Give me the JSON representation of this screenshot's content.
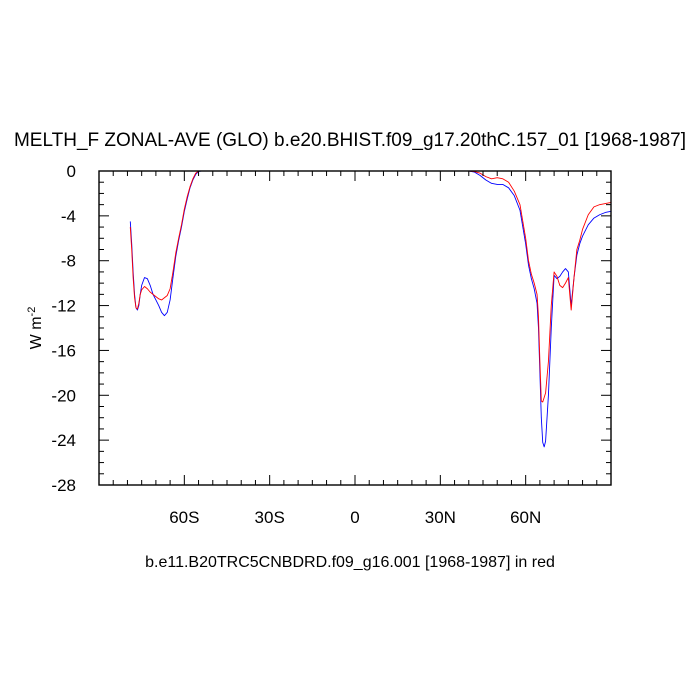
{
  "chart_data": {
    "type": "line",
    "title": "MELTH_F ZONAL-AVE (GLO) b.e20.BHIST.f09_g17.20thC.157_01 [1968-1987]",
    "ylabel_base": "W m",
    "ylabel_exp": "-2",
    "caption": "b.e11.B20TRC5CNBDRD.f09_g16.001 [1968-1987] in red",
    "xlim": [
      -90,
      90
    ],
    "ylim": [
      -28,
      0
    ],
    "xticks": [
      {
        "value": -60,
        "label": "60S"
      },
      {
        "value": -30,
        "label": "30S"
      },
      {
        "value": 0,
        "label": "0"
      },
      {
        "value": 30,
        "label": "30N"
      },
      {
        "value": 60,
        "label": "60N"
      }
    ],
    "yticks": [
      {
        "value": 0,
        "label": "0"
      },
      {
        "value": -4,
        "label": "-4"
      },
      {
        "value": -8,
        "label": "-8"
      },
      {
        "value": -12,
        "label": "-12"
      },
      {
        "value": -16,
        "label": "-16"
      },
      {
        "value": -20,
        "label": "-20"
      },
      {
        "value": -24,
        "label": "-24"
      },
      {
        "value": -28,
        "label": "-28"
      }
    ],
    "series": [
      {
        "color": "#0000ff",
        "x": [
          -79,
          -78.5,
          -78,
          -77.5,
          -77,
          -76.5,
          -76,
          -75.5,
          -75,
          -74,
          -73,
          -72,
          -71,
          -70,
          -69,
          -68,
          -67,
          -66,
          -65,
          -64,
          -63,
          -62,
          -61,
          -60,
          -59,
          -58,
          -57,
          -56,
          -55,
          -54,
          -53,
          -52,
          -51,
          -50,
          40,
          42,
          44,
          46,
          48,
          50,
          52,
          54,
          56,
          58,
          60,
          61,
          62,
          63,
          64,
          64.5,
          65,
          65.5,
          66,
          66.5,
          67,
          68,
          69,
          70,
          71,
          72,
          73,
          74,
          75,
          75.5,
          76,
          77,
          78,
          79,
          80,
          82,
          84,
          86,
          88,
          90
        ],
        "y": [
          -4.5,
          -6.5,
          -9,
          -11,
          -12.2,
          -12.4,
          -12,
          -11,
          -10.2,
          -9.5,
          -9.6,
          -10.2,
          -11,
          -11.5,
          -12,
          -12.6,
          -12.9,
          -12.6,
          -11.5,
          -9.5,
          -7.6,
          -6.2,
          -5,
          -3.6,
          -2.5,
          -1.5,
          -0.8,
          -0.3,
          -0.05,
          0,
          0,
          0,
          0,
          0,
          0,
          -0.1,
          -0.4,
          -0.8,
          -1.1,
          -1.2,
          -1.2,
          -1.5,
          -2.2,
          -3.5,
          -6.5,
          -8.4,
          -9.6,
          -10.5,
          -11.8,
          -14,
          -18,
          -22,
          -24.2,
          -24.6,
          -24.1,
          -20,
          -14,
          -9.3,
          -9.6,
          -9.4,
          -9,
          -8.7,
          -9,
          -10.5,
          -12,
          -9.5,
          -7.5,
          -6.5,
          -5.8,
          -4.8,
          -4.2,
          -3.9,
          -3.7,
          -3.6
        ]
      },
      {
        "color": "#ff0000",
        "x": [
          -79,
          -78.5,
          -78,
          -77.5,
          -77,
          -76.5,
          -76,
          -75.5,
          -75,
          -74,
          -73,
          -72,
          -71,
          -70,
          -69,
          -68,
          -67,
          -66,
          -65,
          -64,
          -63,
          -62,
          -61,
          -60,
          -59,
          -58,
          -57,
          -56,
          -55,
          -54,
          -53,
          -52,
          -51,
          -50,
          40,
          42,
          44,
          46,
          48,
          50,
          52,
          54,
          56,
          58,
          60,
          61,
          62,
          63,
          64,
          64.5,
          65,
          65.5,
          66,
          66.5,
          67,
          68,
          69,
          70,
          71,
          72,
          73,
          74,
          75,
          75.5,
          76,
          77,
          78,
          79,
          80,
          82,
          84,
          86,
          88,
          90
        ],
        "y": [
          -5,
          -7,
          -9.5,
          -11.3,
          -12.2,
          -12.3,
          -11.8,
          -11,
          -10.6,
          -10.3,
          -10.5,
          -10.8,
          -11,
          -11.2,
          -11.4,
          -11.5,
          -11.3,
          -11.1,
          -10.5,
          -9,
          -7.3,
          -6,
          -4.8,
          -3.4,
          -2.3,
          -1.4,
          -0.7,
          -0.2,
          0,
          0,
          0,
          0,
          0,
          0,
          0,
          -0.05,
          -0.2,
          -0.5,
          -0.7,
          -0.6,
          -0.7,
          -1,
          -1.8,
          -3,
          -6,
          -8,
          -9.2,
          -10,
          -11,
          -13,
          -17,
          -20.5,
          -20.6,
          -20.2,
          -19.8,
          -17,
          -12,
          -9,
          -9.4,
          -10.2,
          -10.4,
          -10,
          -9.5,
          -11,
          -12.4,
          -9.5,
          -7,
          -6.2,
          -5.2,
          -3.9,
          -3.2,
          -3,
          -2.9,
          -2.8
        ]
      }
    ]
  }
}
